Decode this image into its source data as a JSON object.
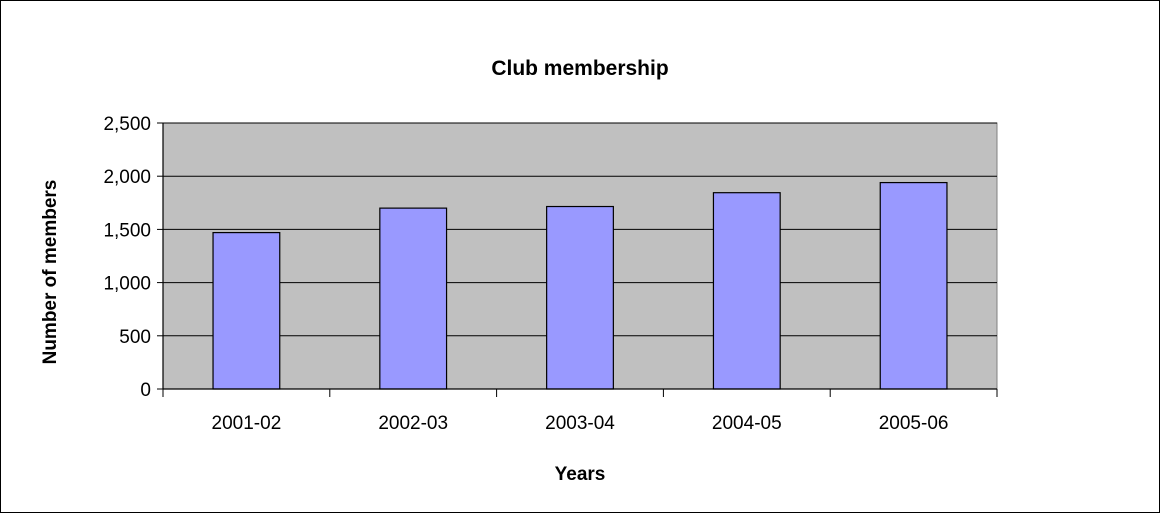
{
  "chart_data": {
    "type": "bar",
    "title": "Club membership",
    "xlabel": "Years",
    "ylabel": "Number of members",
    "categories": [
      "2001-02",
      "2002-03",
      "2003-04",
      "2004-05",
      "2005-06"
    ],
    "values": [
      1470,
      1700,
      1715,
      1845,
      1940
    ],
    "ylim": [
      0,
      2500
    ],
    "yticks": [
      0,
      500,
      1000,
      1500,
      2000,
      2500
    ],
    "ytick_labels": [
      "0",
      "500",
      "1,000",
      "1,500",
      "2,000",
      "2,500"
    ],
    "grid": true,
    "legend": "none",
    "colors": {
      "bar_fill": "#9999ff",
      "bar_stroke": "#000000",
      "plot_background": "#c0c0c0",
      "gridline": "#000000"
    }
  }
}
